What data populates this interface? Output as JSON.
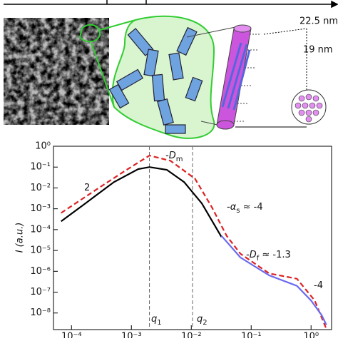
{
  "illustration": {
    "labels": [
      "22.5 nm",
      "19 nm"
    ]
  },
  "chart_data": {
    "type": "line",
    "y_label": "I (a.u.)",
    "x_log": true,
    "y_log": true,
    "xlim": [
      5e-05,
      2.2
    ],
    "ylim": [
      1.6e-09,
      1
    ],
    "xticks": [
      {
        "value": 0.0001,
        "label": "10⁻⁴"
      },
      {
        "value": 0.001,
        "label": "10⁻³"
      },
      {
        "value": 0.01,
        "label": "10⁻²"
      },
      {
        "value": 0.1,
        "label": "10⁻¹"
      },
      {
        "value": 1,
        "label": "10⁰"
      }
    ],
    "yticks": [
      {
        "value": 1,
        "label": "10⁰"
      },
      {
        "value": 0.1,
        "label": "10⁻¹"
      },
      {
        "value": 0.01,
        "label": "10⁻²"
      },
      {
        "value": 0.001,
        "label": "10⁻³"
      },
      {
        "value": 0.0001,
        "label": "10⁻⁴"
      },
      {
        "value": 1e-05,
        "label": "10⁻⁵"
      },
      {
        "value": 1e-06,
        "label": "10⁻⁶"
      },
      {
        "value": 1e-07,
        "label": "10⁻⁷"
      },
      {
        "value": 1e-08,
        "label": "10⁻⁸"
      }
    ],
    "series": [
      {
        "color": "#000000",
        "line_style": "solid",
        "x": [
          6.7e-05,
          0.00017,
          0.00051,
          0.0013,
          0.002,
          0.0039,
          0.0076,
          0.015,
          0.032
        ],
        "values": [
          0.00025,
          0.0018,
          0.019,
          0.08,
          0.1,
          0.074,
          0.019,
          0.0018,
          4.4e-05
        ]
      },
      {
        "color": "#dd2222",
        "line_style": "dashed",
        "x": [
          6.7e-05,
          0.0003,
          0.00076,
          0.002,
          0.0045,
          0.0115,
          0.022,
          0.039,
          0.066,
          0.2,
          0.58,
          1.15,
          1.8
        ],
        "values": [
          0.00063,
          0.011,
          0.063,
          0.36,
          0.2,
          0.028,
          0.0012,
          5e-05,
          7e-06,
          7.9e-07,
          4.4e-07,
          4e-08,
          1.7e-09
        ]
      },
      {
        "color": "#6b6bef",
        "line_style": "solid",
        "x": [
          0.032,
          0.066,
          0.2,
          0.58,
          1.0,
          1.5,
          1.8
        ],
        "values": [
          5e-05,
          4.6e-06,
          6.4e-07,
          2e-07,
          4e-08,
          8e-09,
          2.7e-09
        ]
      }
    ],
    "vlines": [
      0.002,
      0.0105
    ],
    "annotations": [
      {
        "text": "2"
      },
      {
        "text": "-D",
        "sub": "m"
      },
      {
        "text": "-α",
        "sub": "s",
        "rest": " ≈ -4"
      },
      {
        "text": "-D",
        "sub": "f",
        "rest": " ≈ -1.3"
      },
      {
        "text": "-4"
      },
      {
        "text": "q",
        "sub": "1"
      },
      {
        "text": "q",
        "sub": "2"
      }
    ]
  }
}
